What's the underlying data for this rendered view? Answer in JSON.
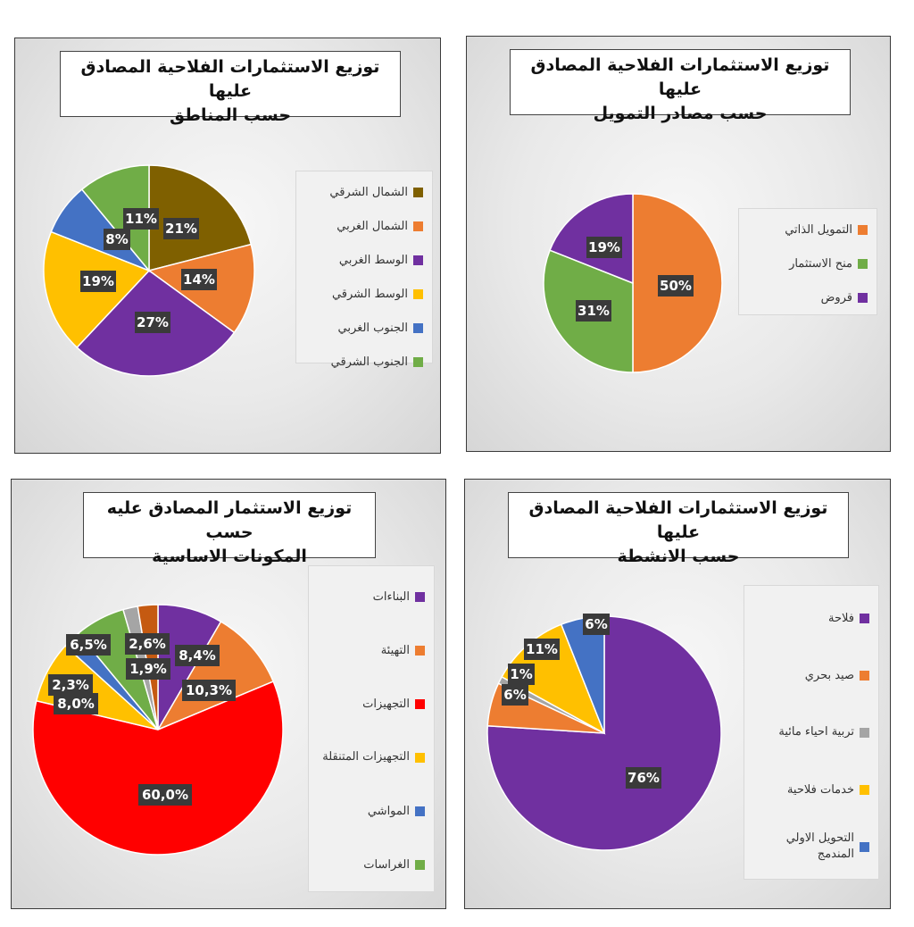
{
  "chart_data": [
    {
      "id": "regions",
      "type": "pie",
      "title": [
        "توزيع الاستثمارات الفلاحية المصادق عليها",
        "حسب المناطق"
      ],
      "categories": [
        "الشمال الشرقي",
        "الشمال الغربي",
        "الوسط الغربي",
        "الوسط الشرقي",
        "الجنوب الغربي",
        "الجنوب الشرقي"
      ],
      "values": [
        21,
        14,
        27,
        19,
        8,
        11
      ],
      "labels": [
        "21%",
        "14%",
        "27%",
        "19%",
        "8%",
        "11%"
      ],
      "colors": [
        "#7f6000",
        "#ed7d31",
        "#7030a0",
        "#ffc000",
        "#4472c4",
        "#70ad47"
      ],
      "legend_position": "right"
    },
    {
      "id": "funding",
      "type": "pie",
      "title": [
        "توزيع الاستثمارات الفلاحية المصادق عليها",
        "حسب مصادر التمويل"
      ],
      "categories": [
        "التمويل الذاتي",
        "منح الاستثمار",
        "قروض"
      ],
      "values": [
        50,
        31,
        19
      ],
      "labels": [
        "50%",
        "31%",
        "19%"
      ],
      "colors": [
        "#ed7d31",
        "#70ad47",
        "#7030a0"
      ],
      "legend_position": "right"
    },
    {
      "id": "components",
      "type": "pie",
      "title": [
        "توزيع الاستثمار المصادق عليه حسب",
        "المكونات الاساسية"
      ],
      "categories": [
        "البناءات",
        "التهيئة",
        "التجهيزات",
        "التجهيزات المتنقلة",
        "المواشي",
        "الغراسات",
        null,
        null
      ],
      "values": [
        8.4,
        10.3,
        60.0,
        8.0,
        2.3,
        6.5,
        1.9,
        2.6
      ],
      "labels": [
        "8,4%",
        "10,3%",
        "60,0%",
        "8,0%",
        "2,3%",
        "6,5%",
        "1,9%",
        "2,6%"
      ],
      "colors": [
        "#7030a0",
        "#ed7d31",
        "#ff0000",
        "#ffc000",
        "#4472c4",
        "#70ad47",
        "#a5a5a5",
        "#c55a11"
      ],
      "legend_position": "right"
    },
    {
      "id": "activities",
      "type": "pie",
      "title": [
        "توزيع الاستثمارات الفلاحية المصادق عليها",
        "حسب الانشطة"
      ],
      "categories": [
        "فلاحة",
        "صيد بحري",
        "تربية احياء مائية",
        "خدمات فلاحية",
        "التحويل الاولي المندمج"
      ],
      "values": [
        76,
        6,
        1,
        11,
        6
      ],
      "labels": [
        "76%",
        "6%",
        "1%",
        "11%",
        "6%"
      ],
      "colors": [
        "#7030a0",
        "#ed7d31",
        "#a5a5a5",
        "#ffc000",
        "#4472c4"
      ],
      "legend_position": "right"
    }
  ]
}
